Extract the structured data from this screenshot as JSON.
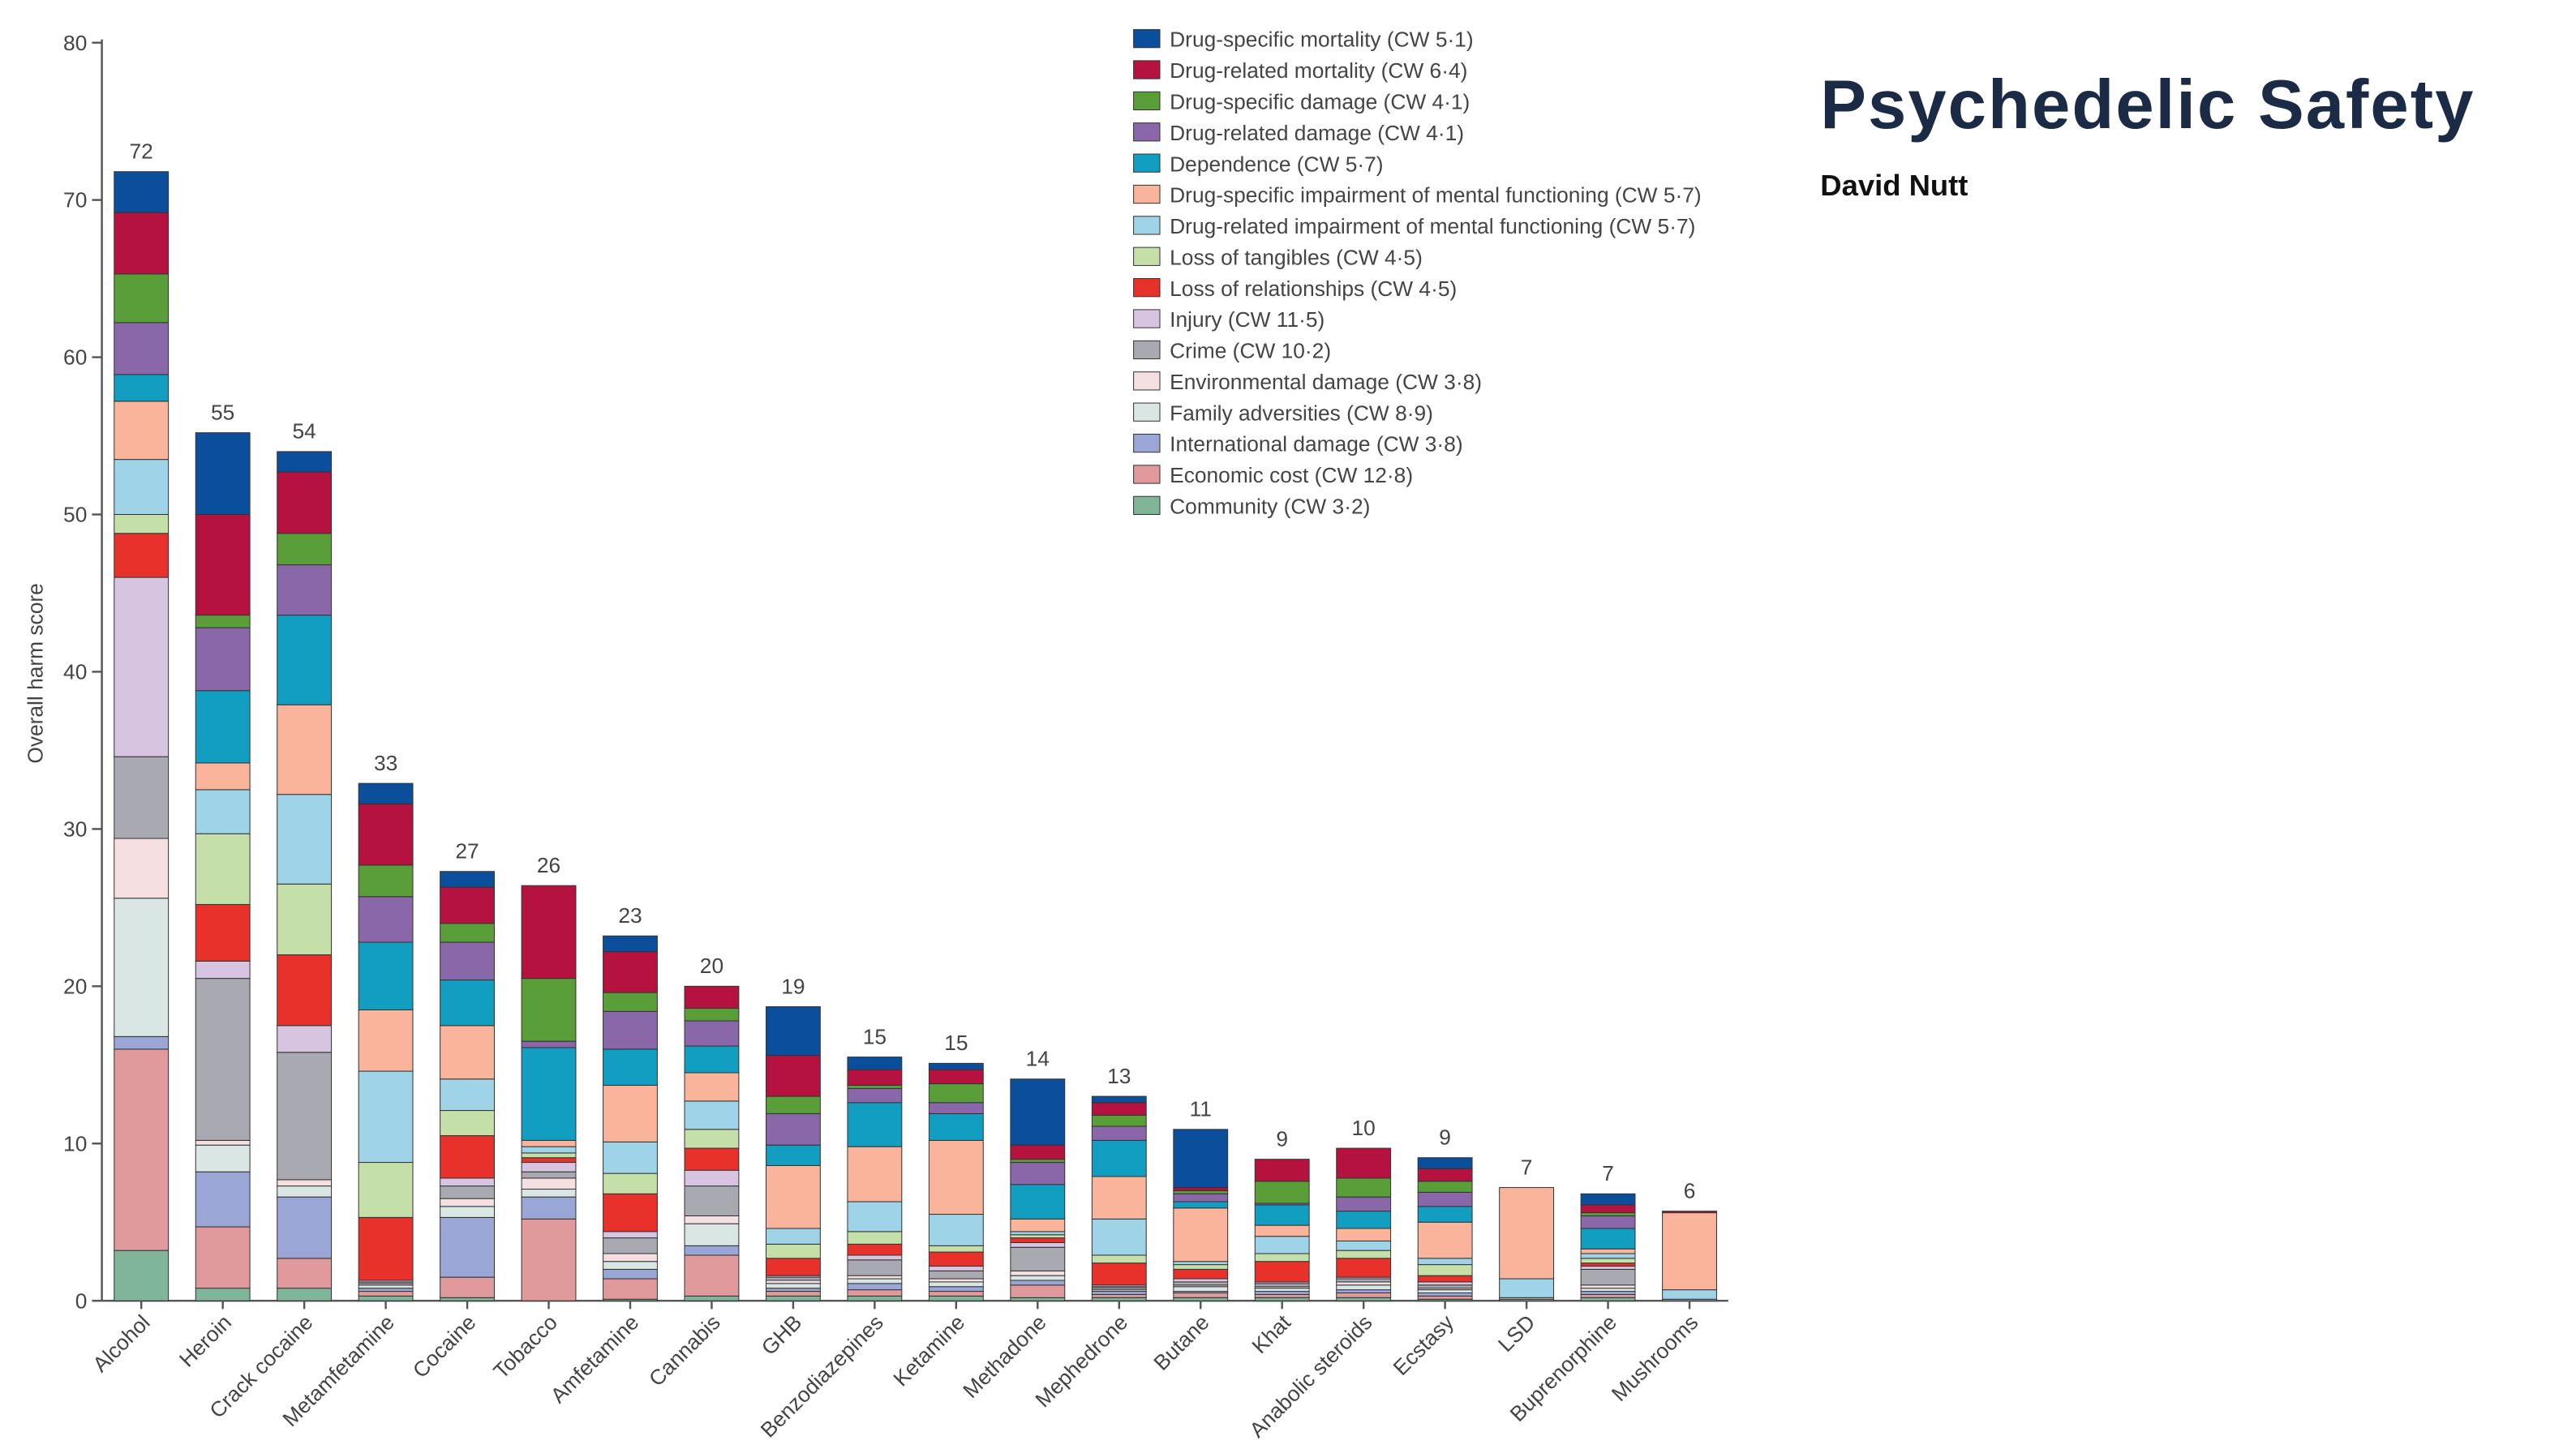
{
  "title": "Psychedelic Safety",
  "subtitle": "David Nutt",
  "chart_data": {
    "type": "stacked_bar",
    "ylabel": "Overall harm score",
    "categories": [
      "Alcohol",
      "Heroin",
      "Crack cocaine",
      "Metamfetamine",
      "Cocaine",
      "Tobacco",
      "Amfetamine",
      "Cannabis",
      "GHB",
      "Benzodiazepines",
      "Ketamine",
      "Methadone",
      "Mephedrone",
      "Butane",
      "Khat",
      "Anabolic steroids",
      "Ecstasy",
      "LSD",
      "Buprenorphine",
      "Mushrooms"
    ],
    "total_labels": [
      72,
      55,
      54,
      33,
      27,
      26,
      23,
      20,
      19,
      15,
      15,
      14,
      13,
      11,
      9,
      10,
      9,
      7,
      7,
      6
    ],
    "ylim": [
      0,
      80
    ],
    "yticks": [
      0,
      10,
      20,
      30,
      40,
      50,
      60,
      70,
      80
    ],
    "series": [
      {
        "name": "Community (CW 3·2)",
        "color": "#80b59a",
        "values": [
          3.2,
          0.8,
          0.8,
          0.3,
          0.2,
          0,
          0.1,
          0.3,
          0.3,
          0.3,
          0.3,
          0.2,
          0.2,
          0.2,
          0.2,
          0.2,
          0.1,
          0,
          0.2,
          0
        ]
      },
      {
        "name": "Economic cost (CW 12·8)",
        "color": "#e09a9c",
        "values": [
          12.8,
          3.9,
          1.9,
          0.3,
          1.3,
          5.2,
          1.3,
          2.6,
          0.3,
          0.4,
          0.3,
          0.8,
          0.2,
          0.3,
          0.2,
          0.3,
          0.2,
          0,
          0.2,
          0
        ]
      },
      {
        "name": "International damage (CW 3·8)",
        "color": "#9aa7d6",
        "values": [
          0.8,
          3.5,
          3.9,
          0.2,
          3.8,
          1.4,
          0.6,
          0.6,
          0.2,
          0.4,
          0.3,
          0.3,
          0.2,
          0.1,
          0.2,
          0.2,
          0.2,
          0,
          0.2,
          0
        ]
      },
      {
        "name": "Family adversities (CW 8·9)",
        "color": "#d9e6e4",
        "values": [
          8.8,
          1.7,
          0.7,
          0.2,
          0.7,
          0.5,
          0.5,
          1.4,
          0.3,
          0.3,
          0.3,
          0.3,
          0.1,
          0.3,
          0.2,
          0.3,
          0.2,
          0,
          0.2,
          0
        ]
      },
      {
        "name": "Environmental damage (CW 3·8)",
        "color": "#f5dfe0",
        "values": [
          3.8,
          0.3,
          0.4,
          0.1,
          0.5,
          0.7,
          0.5,
          0.5,
          0.2,
          0.2,
          0.2,
          0.3,
          0.1,
          0.1,
          0.1,
          0.2,
          0.1,
          0,
          0.2,
          0
        ]
      },
      {
        "name": "Crime (CW 10·2)",
        "color": "#a9a9b1",
        "values": [
          5.2,
          10.3,
          8.1,
          0.1,
          0.8,
          0.4,
          1.0,
          1.9,
          0.2,
          1.0,
          0.5,
          1.5,
          0.1,
          0.2,
          0.2,
          0.2,
          0.2,
          0.1,
          1.0,
          0.1
        ]
      },
      {
        "name": "Injury (CW 11·5)",
        "color": "#d7c4e1",
        "values": [
          11.4,
          1.1,
          1.7,
          0.1,
          0.5,
          0.6,
          0.4,
          1.0,
          0.1,
          0.3,
          0.3,
          0.3,
          0.1,
          0.2,
          0.1,
          0.1,
          0.2,
          0,
          0.2,
          0
        ]
      },
      {
        "name": "Loss of relationships (CW 4·5)",
        "color": "#e8312a",
        "values": [
          2.8,
          3.6,
          4.5,
          4.0,
          2.7,
          0.3,
          2.4,
          1.4,
          1.1,
          0.7,
          0.9,
          0.3,
          1.4,
          0.6,
          1.3,
          1.2,
          0.4,
          0,
          0.2,
          0
        ]
      },
      {
        "name": "Loss of tangibles (CW 4·5)",
        "color": "#c5dfa8",
        "values": [
          1.2,
          4.5,
          4.5,
          3.5,
          1.6,
          0.3,
          1.3,
          1.2,
          0.9,
          0.8,
          0.4,
          0.2,
          0.5,
          0.3,
          0.5,
          0.5,
          0.7,
          0.1,
          0.3,
          0
        ]
      },
      {
        "name": "Drug-related impairment of mental functioning (CW 5·7)",
        "color": "#9ed3e8",
        "values": [
          3.5,
          2.8,
          5.7,
          5.8,
          2.0,
          0.4,
          2.0,
          1.8,
          1.0,
          1.9,
          2.0,
          0.2,
          2.3,
          0.2,
          1.1,
          0.6,
          0.4,
          1.2,
          0.3,
          0.6
        ]
      },
      {
        "name": "Drug-specific impairment of mental functioning (CW 5·7)",
        "color": "#f9b49b",
        "values": [
          3.7,
          1.7,
          5.7,
          3.9,
          3.4,
          0.4,
          3.6,
          1.8,
          4.0,
          3.5,
          4.7,
          0.8,
          2.7,
          3.4,
          0.7,
          0.8,
          2.3,
          5.8,
          0.3,
          4.9
        ]
      },
      {
        "name": "Dependence (CW 5·7)",
        "color": "#119ec0",
        "values": [
          1.7,
          4.6,
          5.7,
          4.3,
          2.9,
          5.9,
          2.3,
          1.7,
          1.3,
          2.8,
          1.7,
          2.2,
          2.3,
          0.4,
          1.3,
          1.1,
          1.0,
          0,
          1.3,
          0
        ]
      },
      {
        "name": "Drug-related damage (CW 4·1)",
        "color": "#8a67a8",
        "values": [
          3.3,
          4.0,
          3.2,
          2.9,
          2.4,
          0.4,
          2.4,
          1.6,
          2.0,
          0.9,
          0.7,
          1.4,
          0.9,
          0.5,
          0.1,
          0.9,
          0.9,
          0,
          0.8,
          0
        ]
      },
      {
        "name": "Drug-specific damage (CW 4·1)",
        "color": "#5a9e3a",
        "values": [
          3.1,
          0.8,
          2.0,
          2.0,
          1.2,
          4.0,
          1.2,
          0.8,
          1.1,
          0.2,
          1.2,
          0.2,
          0.7,
          0.2,
          1.4,
          1.2,
          0.7,
          0,
          0.2,
          0
        ]
      },
      {
        "name": "Drug-related mortality (CW 6·4)",
        "color": "#b5123f",
        "values": [
          3.9,
          6.4,
          3.9,
          3.9,
          2.3,
          5.9,
          2.6,
          1.4,
          2.6,
          1.0,
          0.9,
          0.9,
          0.8,
          0.2,
          1.4,
          1.9,
          0.8,
          0,
          0.5,
          0.1
        ]
      },
      {
        "name": "Drug-specific mortality (CW 5·1)",
        "color": "#0b4f9c",
        "values": [
          2.6,
          5.2,
          1.3,
          1.3,
          1.0,
          0,
          1.0,
          0,
          3.1,
          0.8,
          0.4,
          4.2,
          0.4,
          3.7,
          0,
          0,
          0.7,
          0,
          0.7,
          0
        ]
      }
    ]
  }
}
